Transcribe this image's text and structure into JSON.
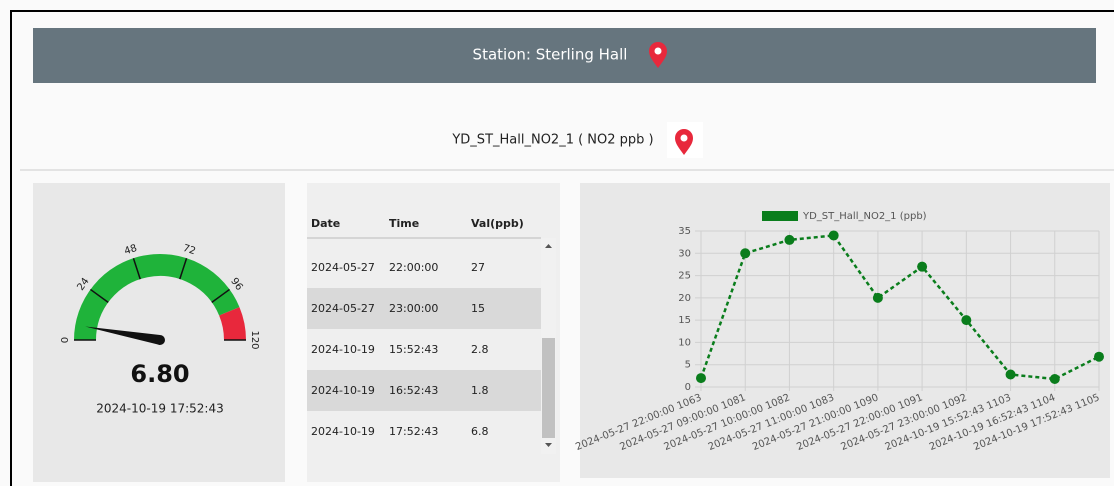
{
  "header": {
    "title": "Station: Sterling Hall"
  },
  "sensor": {
    "label": "YD_ST_Hall_NO2_1 ( NO2 ppb )"
  },
  "gauge": {
    "value": 6.8,
    "value_label": "6.80",
    "min": 0,
    "max": 120,
    "ticks": [
      0,
      24,
      48,
      72,
      96,
      120
    ],
    "bands": [
      {
        "from": 0,
        "to": 105,
        "color": "#1fb33a"
      },
      {
        "from": 105,
        "to": 120,
        "color": "#e8283c"
      }
    ],
    "timestamp": "2024-10-19 17:52:43"
  },
  "table": {
    "columns": [
      "Date",
      "Time",
      "Val(ppb)"
    ],
    "rows": [
      [
        "2024-05-27",
        "22:00:00",
        "27"
      ],
      [
        "2024-05-27",
        "23:00:00",
        "15"
      ],
      [
        "2024-10-19",
        "15:52:43",
        "2.8"
      ],
      [
        "2024-10-19",
        "16:52:43",
        "1.8"
      ],
      [
        "2024-10-19",
        "17:52:43",
        "6.8"
      ]
    ]
  },
  "chart_data": {
    "type": "line",
    "categories": [
      "2024-05-27 22:00:00 1063",
      "2024-05-27 09:00:00 1081",
      "2024-05-27 10:00:00 1082",
      "2024-05-27 11:00:00 1083",
      "2024-05-27 21:00:00 1090",
      "2024-05-27 22:00:00 1091",
      "2024-05-27 23:00:00 1092",
      "2024-10-19 15:52:43 1103",
      "2024-10-19 16:52:43 1104",
      "2024-10-19 17:52:43 1105"
    ],
    "series": [
      {
        "name": "YD_ST_Hall_NO2_1 (ppb)",
        "color": "#0a7d1c",
        "values": [
          2,
          30,
          33,
          34,
          20,
          27,
          15,
          2.8,
          1.8,
          6.8
        ]
      }
    ],
    "ylim": [
      0,
      35
    ],
    "yticks": [
      0,
      5,
      10,
      15,
      20,
      25,
      30,
      35
    ],
    "grid": true,
    "legend": "top"
  }
}
